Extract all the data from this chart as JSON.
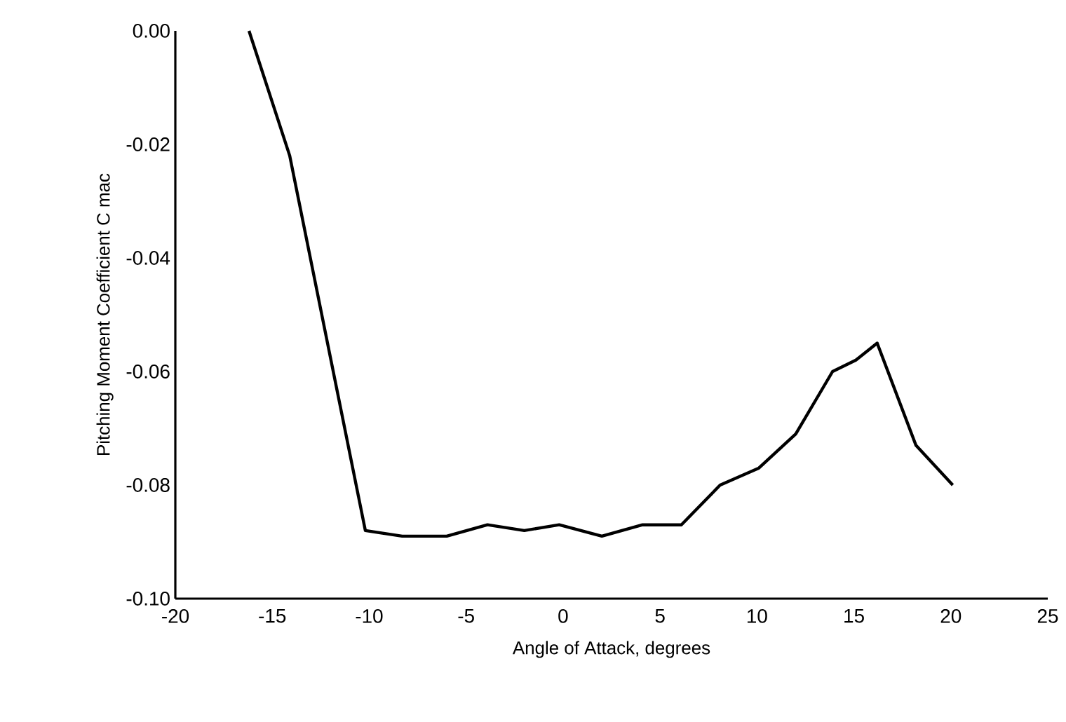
{
  "chart_data": {
    "type": "line",
    "xlabel": "Angle of Attack, degrees",
    "ylabel": "Pitching Moment Coefficient C mac",
    "x": [
      -16.2,
      -14.1,
      -10.2,
      -8.3,
      -6.0,
      -3.9,
      -2.0,
      -0.2,
      2.0,
      4.1,
      6.1,
      8.1,
      10.1,
      12.0,
      13.9,
      15.1,
      16.2,
      18.2,
      20.1
    ],
    "series": [
      {
        "color": "#000000",
        "values": [
          0.0,
          -0.022,
          -0.088,
          -0.089,
          -0.089,
          -0.087,
          -0.088,
          -0.087,
          -0.089,
          -0.087,
          -0.087,
          -0.08,
          -0.077,
          -0.071,
          -0.06,
          -0.058,
          -0.055,
          -0.073,
          -0.08
        ]
      }
    ],
    "xlim": [
      -20,
      25
    ],
    "xticks": [
      -20,
      -15,
      -10,
      -5,
      0,
      5,
      10,
      15,
      20,
      25
    ],
    "ylim": [
      -0.1,
      0.0
    ],
    "yticks": [
      {
        "value": -0.1,
        "label": "-0.10"
      },
      {
        "value": -0.08,
        "label": "-0.08"
      },
      {
        "value": -0.06,
        "label": "-0.06"
      },
      {
        "value": -0.04,
        "label": "-0.04"
      },
      {
        "value": -0.02,
        "label": "-0.02"
      },
      {
        "value": 0.0,
        "label": "0.00"
      }
    ],
    "grid": false,
    "legend": false,
    "marker": "none",
    "line_style": "solid"
  }
}
